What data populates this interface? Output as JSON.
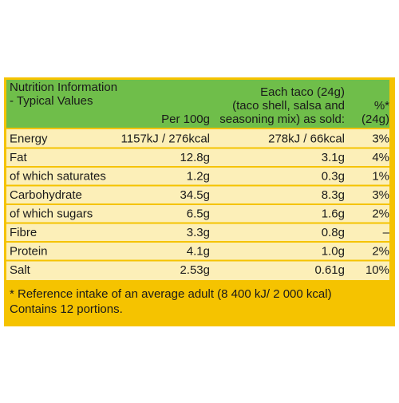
{
  "header": {
    "col0": [
      "Nutrition Information",
      " - Typical Values"
    ],
    "col1": [
      "Per 100g"
    ],
    "col2": [
      "Each taco (24g)",
      "(taco shell, salsa and",
      "seasoning mix) as sold:"
    ],
    "col3": [
      "%*",
      "(24g)"
    ]
  },
  "table": {
    "rows": [
      [
        "Energy",
        "1157kJ / 276kcal",
        "278kJ / 66kcal",
        "3%"
      ],
      [
        "Fat",
        "12.8g",
        "3.1g",
        "4%"
      ],
      [
        "of which saturates",
        "1.2g",
        "0.3g",
        "1%"
      ],
      [
        "Carbohydrate",
        "34.5g",
        "8.3g",
        "3%"
      ],
      [
        "of which sugars",
        "6.5g",
        "1.6g",
        "2%"
      ],
      [
        "Fibre",
        "3.3g",
        "0.8g",
        "–"
      ],
      [
        "Protein",
        "4.1g",
        "1.0g",
        "2%"
      ],
      [
        "Salt",
        "2.53g",
        "0.61g",
        "10%"
      ]
    ]
  },
  "footnote": [
    "* Reference intake of an average adult (8 400 kJ/ 2 000 kcal)",
    "Contains 12 portions."
  ]
}
